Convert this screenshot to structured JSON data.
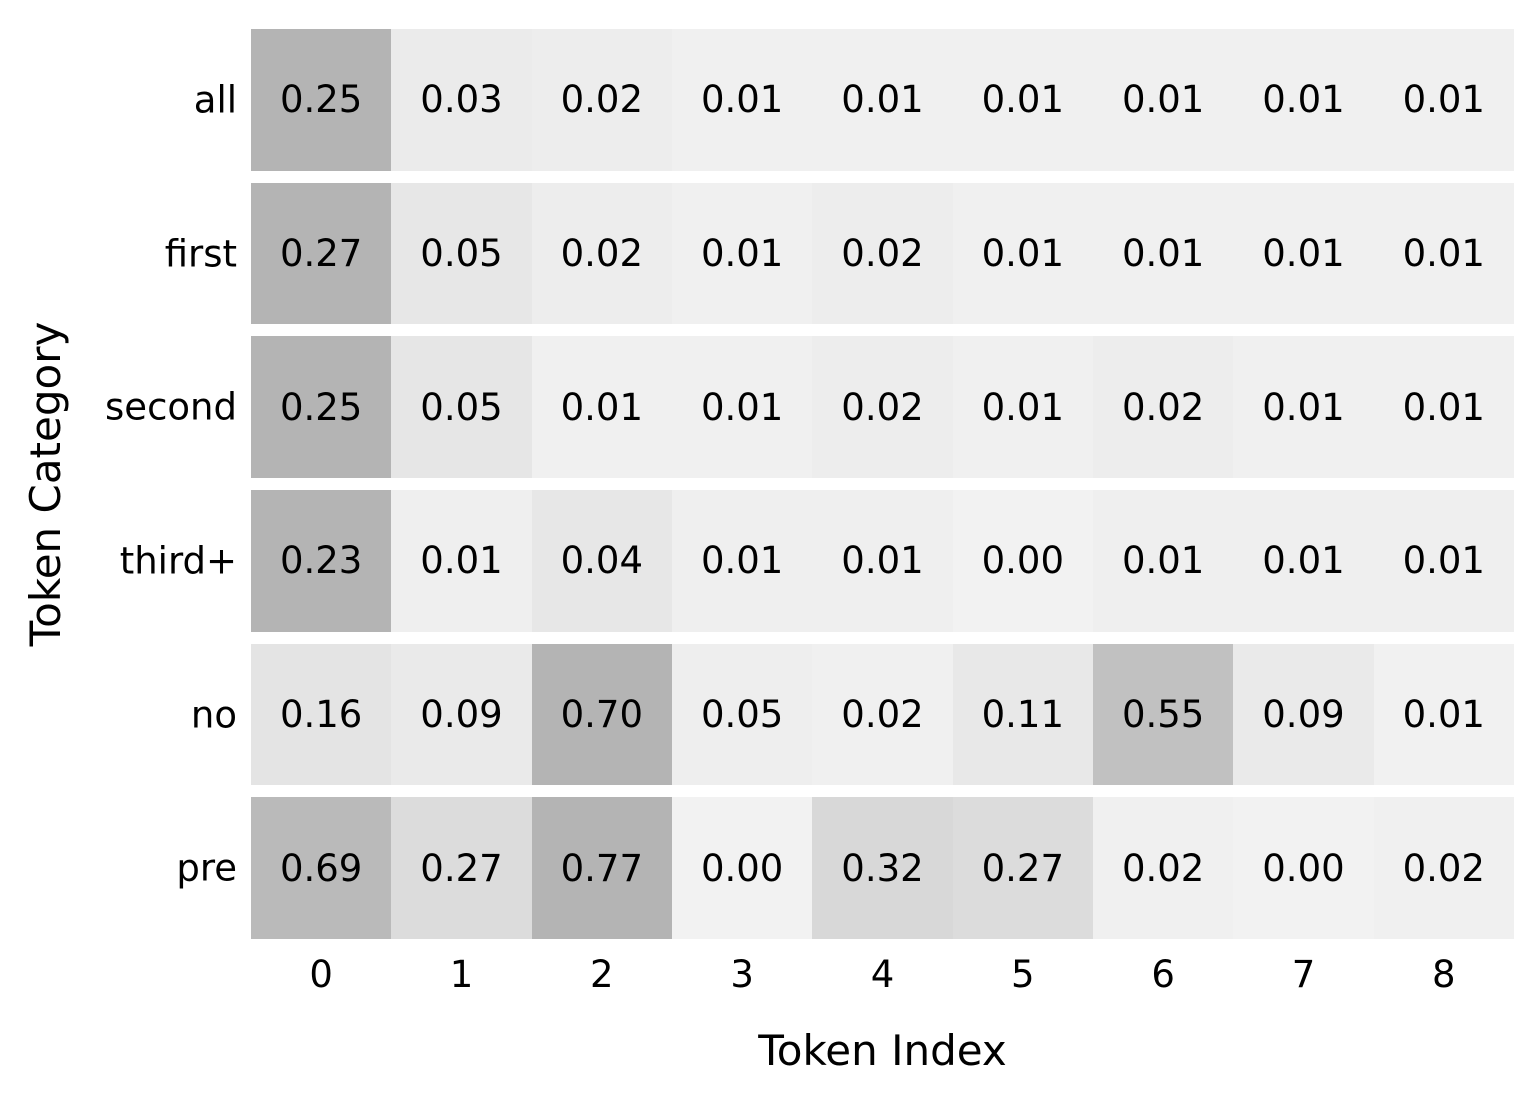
{
  "chart_data": {
    "type": "heatmap",
    "title": "",
    "xlabel": "Token Index",
    "ylabel": "Token Category",
    "x_tick_labels": [
      "0",
      "1",
      "2",
      "3",
      "4",
      "5",
      "6",
      "7",
      "8"
    ],
    "y_tick_labels": [
      "all",
      "first",
      "second",
      "third+",
      "no",
      "pre"
    ],
    "series": [
      {
        "name": "all",
        "values": [
          0.25,
          0.03,
          0.02,
          0.01,
          0.01,
          0.01,
          0.01,
          0.01,
          0.01
        ]
      },
      {
        "name": "first",
        "values": [
          0.27,
          0.05,
          0.02,
          0.01,
          0.02,
          0.01,
          0.01,
          0.01,
          0.01
        ]
      },
      {
        "name": "second",
        "values": [
          0.25,
          0.05,
          0.01,
          0.01,
          0.02,
          0.01,
          0.02,
          0.01,
          0.01
        ]
      },
      {
        "name": "third+",
        "values": [
          0.23,
          0.01,
          0.04,
          0.01,
          0.01,
          0.0,
          0.01,
          0.01,
          0.01
        ]
      },
      {
        "name": "no",
        "values": [
          0.16,
          0.09,
          0.7,
          0.05,
          0.02,
          0.11,
          0.55,
          0.09,
          0.01
        ]
      },
      {
        "name": "pre",
        "values": [
          0.69,
          0.27,
          0.77,
          0.0,
          0.32,
          0.27,
          0.02,
          0.0,
          0.02
        ]
      }
    ],
    "value_format": "0.00",
    "colors": {
      "background": "#ffffff",
      "cell_min": "#f2f2f2",
      "cell_max": "#b4b4b4",
      "annotation_text": "#000000"
    },
    "layout": {
      "legend": false,
      "colorbar": false,
      "grid": false,
      "row_gaps": true,
      "color_scale": "per-row linear, value/row_max maps cell_min to cell_max"
    }
  }
}
